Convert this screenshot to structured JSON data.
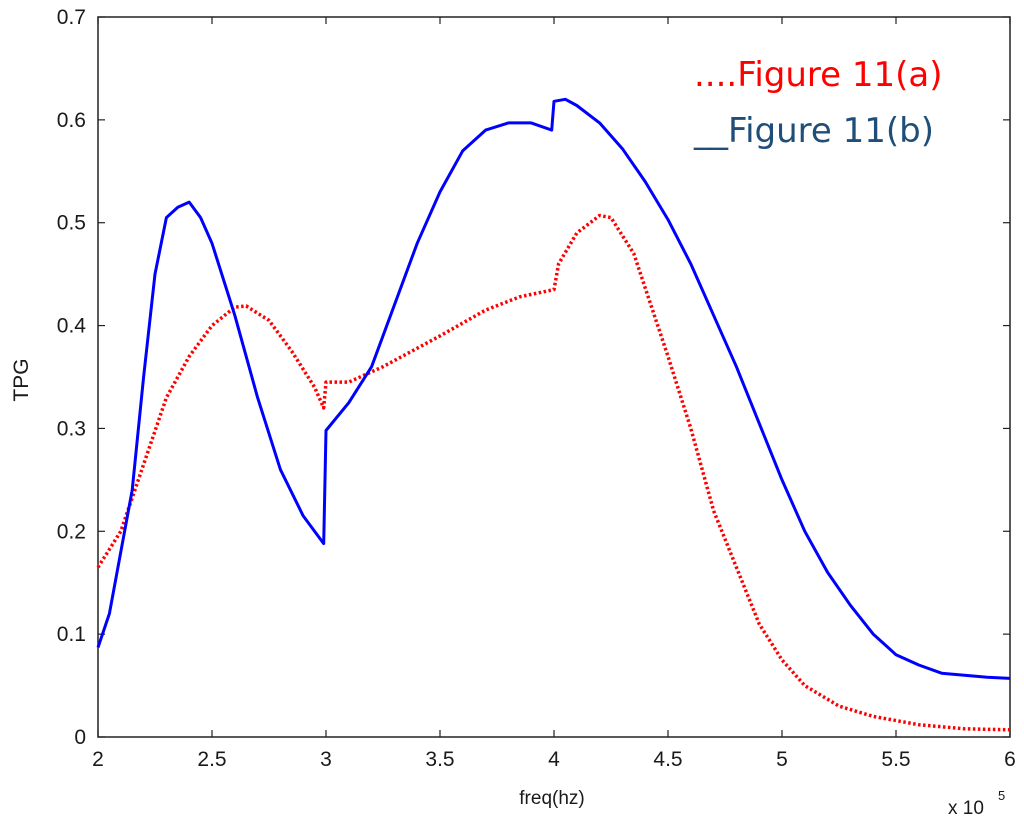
{
  "chart_data": {
    "type": "line",
    "xlabel": "freq(hz)",
    "ylabel": "TPG",
    "x_multiplier_label": "x 10",
    "x_multiplier_exponent": "5",
    "xlim": [
      2,
      6
    ],
    "ylim": [
      0,
      0.7
    ],
    "x_ticks": [
      2,
      2.5,
      3,
      3.5,
      4,
      4.5,
      5,
      5.5,
      6
    ],
    "x_tick_labels": [
      "2",
      "2.5",
      "3",
      "3.5",
      "4",
      "4.5",
      "5",
      "5.5",
      "6"
    ],
    "y_ticks": [
      0,
      0.1,
      0.2,
      0.3,
      0.4,
      0.5,
      0.6,
      0.7
    ],
    "y_tick_labels": [
      "0",
      "0.1",
      "0.2",
      "0.3",
      "0.4",
      "0.5",
      "0.6",
      "0.7"
    ],
    "grid": false,
    "legend_position": "top-right",
    "series": [
      {
        "name": "Figure 11(a)",
        "legend_label": "....Figure 11(a)",
        "color": "#ff0000",
        "style": "dotted",
        "points": [
          [
            2.0,
            0.165
          ],
          [
            2.1,
            0.2
          ],
          [
            2.2,
            0.265
          ],
          [
            2.3,
            0.33
          ],
          [
            2.4,
            0.37
          ],
          [
            2.5,
            0.4
          ],
          [
            2.6,
            0.418
          ],
          [
            2.65,
            0.419
          ],
          [
            2.75,
            0.405
          ],
          [
            2.85,
            0.375
          ],
          [
            2.95,
            0.34
          ],
          [
            2.99,
            0.32
          ],
          [
            3.0,
            0.345
          ],
          [
            3.1,
            0.345
          ],
          [
            3.25,
            0.36
          ],
          [
            3.5,
            0.39
          ],
          [
            3.7,
            0.415
          ],
          [
            3.85,
            0.428
          ],
          [
            4.0,
            0.435
          ],
          [
            4.02,
            0.46
          ],
          [
            4.1,
            0.49
          ],
          [
            4.2,
            0.507
          ],
          [
            4.25,
            0.505
          ],
          [
            4.35,
            0.47
          ],
          [
            4.5,
            0.37
          ],
          [
            4.6,
            0.3
          ],
          [
            4.7,
            0.22
          ],
          [
            4.8,
            0.165
          ],
          [
            4.9,
            0.11
          ],
          [
            5.0,
            0.075
          ],
          [
            5.1,
            0.05
          ],
          [
            5.25,
            0.03
          ],
          [
            5.4,
            0.02
          ],
          [
            5.6,
            0.012
          ],
          [
            5.8,
            0.008
          ],
          [
            6.0,
            0.007
          ]
        ]
      },
      {
        "name": "Figure 11(b)",
        "legend_label": "__Figure 11(b)",
        "color": "#0000ff",
        "style": "solid",
        "points": [
          [
            2.0,
            0.087
          ],
          [
            2.05,
            0.12
          ],
          [
            2.1,
            0.18
          ],
          [
            2.15,
            0.24
          ],
          [
            2.2,
            0.35
          ],
          [
            2.25,
            0.45
          ],
          [
            2.3,
            0.505
          ],
          [
            2.35,
            0.515
          ],
          [
            2.4,
            0.52
          ],
          [
            2.45,
            0.505
          ],
          [
            2.5,
            0.48
          ],
          [
            2.6,
            0.41
          ],
          [
            2.7,
            0.33
          ],
          [
            2.8,
            0.26
          ],
          [
            2.9,
            0.215
          ],
          [
            2.99,
            0.188
          ],
          [
            3.0,
            0.298
          ],
          [
            3.1,
            0.325
          ],
          [
            3.2,
            0.36
          ],
          [
            3.3,
            0.42
          ],
          [
            3.4,
            0.48
          ],
          [
            3.5,
            0.53
          ],
          [
            3.6,
            0.57
          ],
          [
            3.7,
            0.59
          ],
          [
            3.8,
            0.597
          ],
          [
            3.9,
            0.597
          ],
          [
            3.99,
            0.59
          ],
          [
            4.0,
            0.618
          ],
          [
            4.05,
            0.62
          ],
          [
            4.1,
            0.614
          ],
          [
            4.2,
            0.597
          ],
          [
            4.3,
            0.572
          ],
          [
            4.4,
            0.54
          ],
          [
            4.5,
            0.503
          ],
          [
            4.6,
            0.46
          ],
          [
            4.7,
            0.41
          ],
          [
            4.8,
            0.36
          ],
          [
            4.9,
            0.305
          ],
          [
            5.0,
            0.25
          ],
          [
            5.1,
            0.2
          ],
          [
            5.2,
            0.16
          ],
          [
            5.3,
            0.128
          ],
          [
            5.4,
            0.1
          ],
          [
            5.5,
            0.08
          ],
          [
            5.6,
            0.07
          ],
          [
            5.7,
            0.062
          ],
          [
            5.8,
            0.06
          ],
          [
            5.9,
            0.058
          ],
          [
            6.0,
            0.057
          ]
        ]
      }
    ]
  }
}
